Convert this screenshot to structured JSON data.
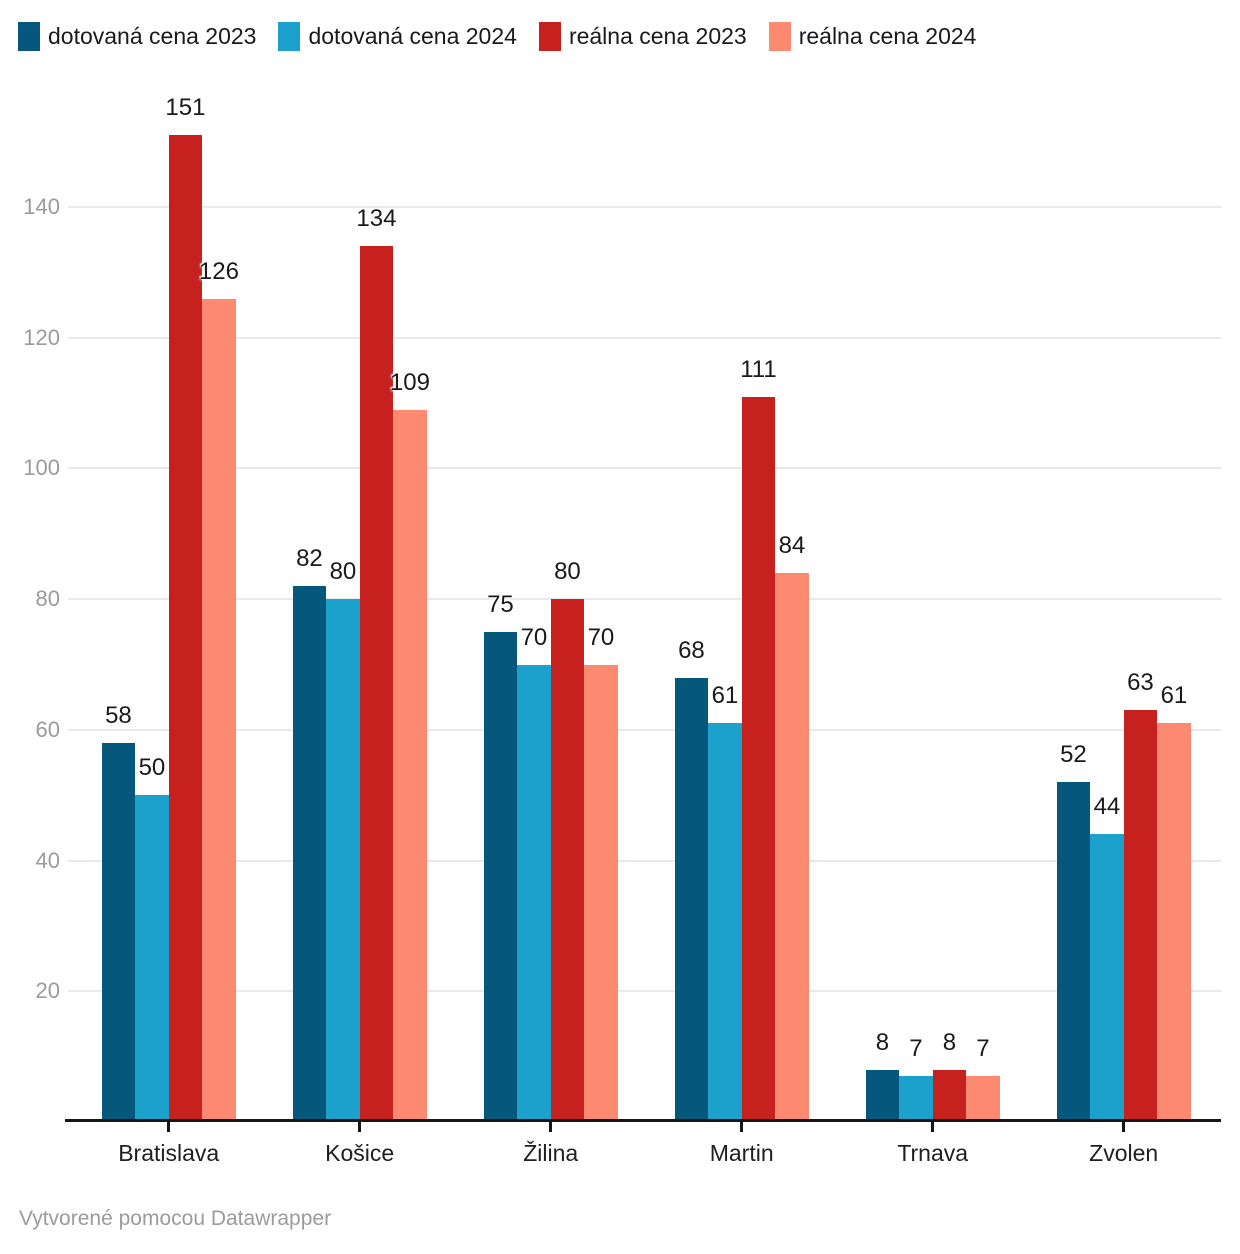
{
  "chart_data": {
    "type": "bar",
    "title": "",
    "categories": [
      "Bratislava",
      "Košice",
      "Žilina",
      "Martin",
      "Trnava",
      "Zvolen"
    ],
    "series": [
      {
        "name": "dotovaná cena 2023",
        "color": "#05587C",
        "values": [
          58,
          82,
          75,
          68,
          8,
          52
        ]
      },
      {
        "name": "dotovaná cena 2024",
        "color": "#1CA0CC",
        "values": [
          50,
          80,
          70,
          61,
          7,
          44
        ]
      },
      {
        "name": "reálna cena 2023",
        "color": "#C6211E",
        "values": [
          151,
          134,
          80,
          111,
          8,
          63
        ]
      },
      {
        "name": "reálna cena 2024",
        "color": "#FB8A70",
        "values": [
          126,
          109,
          70,
          84,
          7,
          61
        ]
      }
    ],
    "xlabel": "",
    "ylabel": "",
    "yticks": [
      20,
      40,
      60,
      80,
      100,
      120,
      140
    ],
    "ylim": [
      0,
      157
    ],
    "grid": "horizontal",
    "legend_position": "top",
    "value_labels": true
  },
  "legend": {
    "items": [
      {
        "label": "dotovaná cena 2023",
        "color": "#05587C"
      },
      {
        "label": "dotovaná cena 2024",
        "color": "#1CA0CC"
      },
      {
        "label": "reálna cena 2023",
        "color": "#C6211E"
      },
      {
        "label": "reálna cena 2024",
        "color": "#FB8A70"
      }
    ]
  },
  "footer": {
    "attribution": "Vytvorené pomocou Datawrapper"
  },
  "layout_colors": {
    "gridline": "#e9e9e9",
    "axis_line": "#161616",
    "axis_label": "#9b9b9b",
    "value_label": "#1a1a1a"
  }
}
